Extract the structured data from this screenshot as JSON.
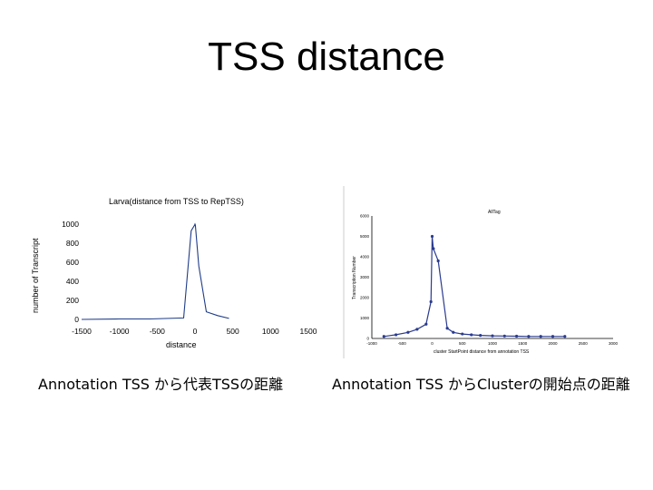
{
  "slide": {
    "title": "TSS distance",
    "caption_left": "Annotation TSS から代表TSSの距離",
    "caption_right": "Annotation TSS からClusterの開始点の距離"
  },
  "chart_data": [
    {
      "type": "line",
      "title": "Larva(distance from TSS to RepTSS)",
      "xlabel": "distance",
      "ylabel": "number of Transcript",
      "xlim": [
        -1500,
        1500
      ],
      "ylim": [
        0,
        1000
      ],
      "xticks": [
        "-1500",
        "-1000",
        "-500",
        "0",
        "500",
        "1000",
        "1500"
      ],
      "yticks": [
        "0",
        "200",
        "400",
        "600",
        "800",
        "1000"
      ],
      "color": "#1f3c88",
      "x": [
        -1500,
        -1000,
        -600,
        -150,
        -50,
        -5,
        0,
        5,
        50,
        150,
        300,
        450
      ],
      "y": [
        0,
        5,
        5,
        15,
        930,
        990,
        1000,
        990,
        560,
        80,
        40,
        10
      ],
      "grid": false
    },
    {
      "type": "line",
      "title": "AllTag",
      "xlabel": "cluster StartPoint distance from annotation TSS",
      "ylabel": "Transcription Number",
      "xlim": [
        -1000,
        3000
      ],
      "ylim": [
        0,
        6000
      ],
      "xticks": [
        "-1000",
        "-500",
        "0",
        "500",
        "1000",
        "1500",
        "2000",
        "2500",
        "3000"
      ],
      "yticks": [
        "0",
        "1000",
        "2000",
        "3000",
        "4000",
        "5000",
        "6000"
      ],
      "color": "#2a3b8f",
      "x": [
        -800,
        -600,
        -400,
        -250,
        -100,
        -20,
        0,
        20,
        100,
        250,
        350,
        500,
        650,
        800,
        1000,
        1200,
        1400,
        1600,
        1800,
        2000,
        2200
      ],
      "y": [
        100,
        180,
        300,
        450,
        700,
        1800,
        5000,
        4400,
        3800,
        500,
        300,
        220,
        180,
        150,
        130,
        120,
        110,
        100,
        100,
        100,
        100
      ],
      "grid": false
    }
  ]
}
